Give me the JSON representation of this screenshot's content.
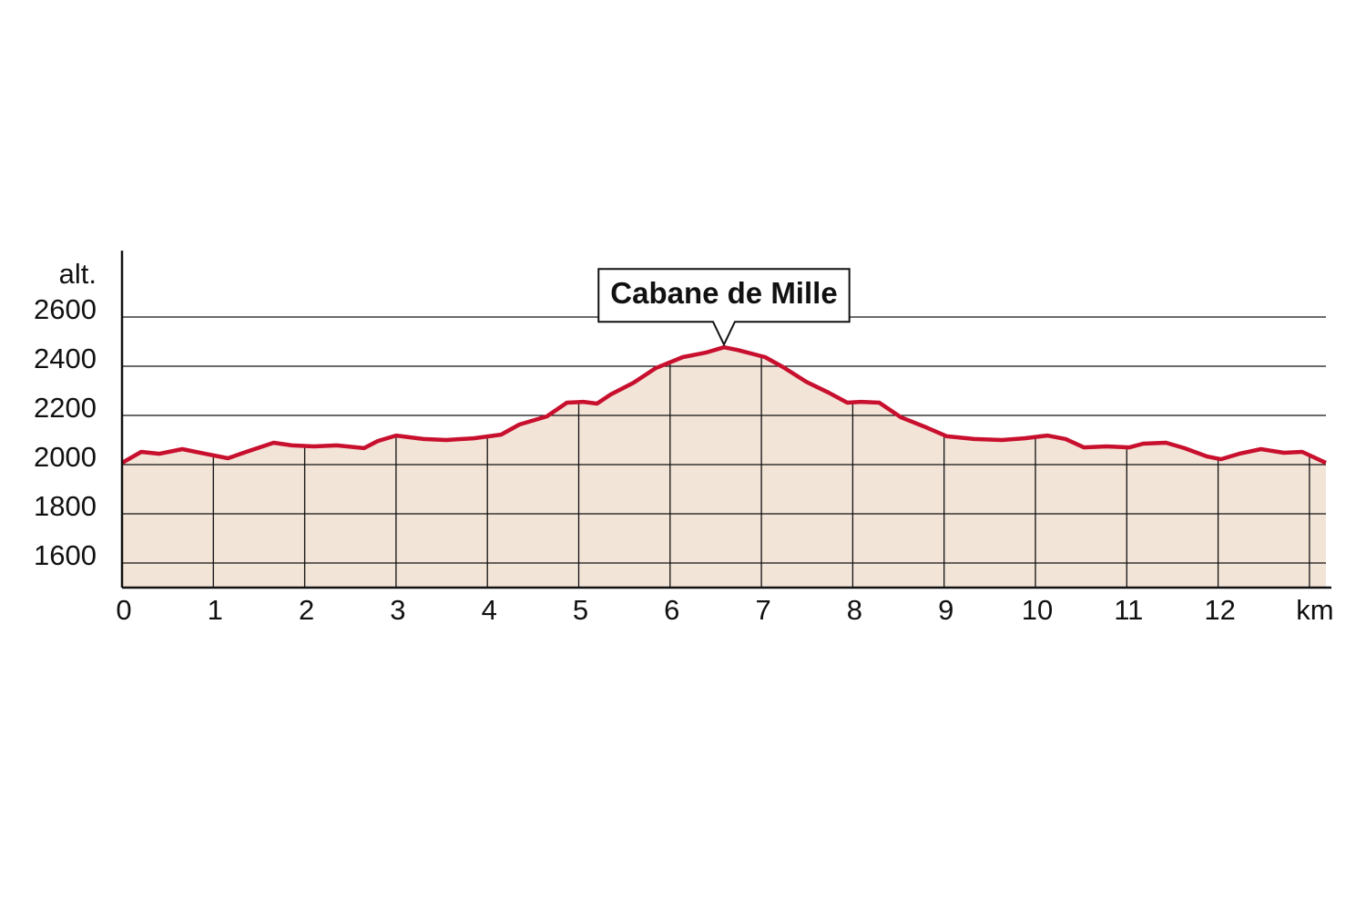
{
  "chart_data": {
    "type": "area",
    "y_label": "alt.",
    "x": [
      0,
      0.21,
      0.41,
      0.66,
      0.91,
      1.16,
      1.36,
      1.66,
      1.86,
      2.1,
      2.35,
      2.65,
      2.8,
      3.0,
      3.3,
      3.55,
      3.85,
      4.15,
      4.35,
      4.65,
      4.87,
      5.05,
      5.2,
      5.35,
      5.6,
      5.84,
      6.14,
      6.39,
      6.59,
      6.74,
      7.04,
      7.24,
      7.49,
      7.74,
      7.94,
      8.09,
      8.29,
      8.53,
      8.78,
      9.03,
      9.33,
      9.63,
      9.88,
      10.13,
      10.33,
      10.53,
      10.78,
      11.03,
      11.18,
      11.43,
      11.63,
      11.88,
      12.03,
      12.23,
      12.47,
      12.72,
      12.92,
      13.18
    ],
    "values": [
      2007,
      2052,
      2044,
      2063,
      2044,
      2026,
      2052,
      2089,
      2078,
      2074,
      2078,
      2067,
      2096,
      2118,
      2104,
      2100,
      2107,
      2122,
      2163,
      2196,
      2252,
      2255,
      2248,
      2285,
      2333,
      2392,
      2437,
      2455,
      2477,
      2466,
      2437,
      2396,
      2337,
      2292,
      2252,
      2255,
      2252,
      2192,
      2155,
      2115,
      2104,
      2100,
      2107,
      2118,
      2104,
      2070,
      2074,
      2070,
      2085,
      2089,
      2067,
      2033,
      2022,
      2044,
      2063,
      2048,
      2052,
      2007
    ],
    "color": "#c8102e",
    "fill": "#f3e4d8",
    "xlim": [
      0,
      13.25
    ],
    "ylim": [
      1500,
      2870
    ],
    "xticks": [
      0,
      1,
      2,
      3,
      4,
      5,
      6,
      7,
      8,
      9,
      10,
      11,
      12,
      {
        "value": 13,
        "label": "km"
      }
    ],
    "yticks": [
      1600,
      1800,
      2000,
      2200,
      2400,
      2600
    ],
    "grid": true,
    "annotation": {
      "text": "Cabane de Mille",
      "x": 6.59,
      "y": 2477
    }
  }
}
